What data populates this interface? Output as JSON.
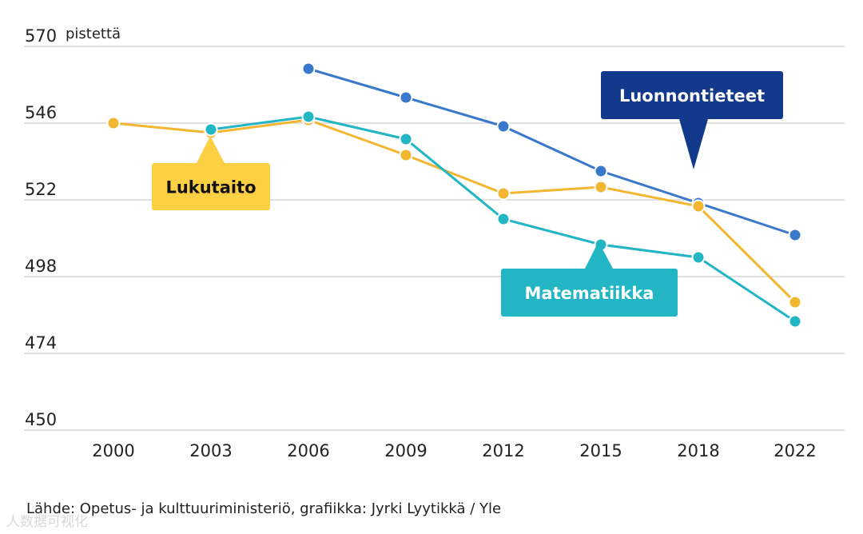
{
  "chart_data": {
    "type": "line",
    "title": "",
    "ylabel": "pistettä",
    "xlabel": "",
    "ylim": [
      450,
      570
    ],
    "yticks": [
      450,
      474,
      498,
      522,
      546,
      570
    ],
    "categories": [
      "2000",
      "2003",
      "2006",
      "2009",
      "2012",
      "2015",
      "2018",
      "2022"
    ],
    "grid": true,
    "series": [
      {
        "name": "Luonnontieteet",
        "color": "#3a78cc",
        "values": [
          null,
          null,
          563,
          554,
          545,
          531,
          521,
          511
        ]
      },
      {
        "name": "Lukutaito",
        "color": "#f2b630",
        "values": [
          546,
          543,
          547,
          536,
          524,
          526,
          520,
          490
        ]
      },
      {
        "name": "Matematiikka",
        "color": "#22b5c3",
        "values": [
          null,
          544,
          548,
          541,
          516,
          508,
          504,
          484
        ]
      }
    ],
    "callouts": [
      {
        "series": "Luonnontieteet",
        "label": "Luonnontieteet",
        "bg": "#13398d",
        "fg": "#ffffff",
        "anchor_year": "2018"
      },
      {
        "series": "Lukutaito",
        "label": "Lukutaito",
        "bg": "#fdd044",
        "fg": "#111111",
        "anchor_year": "2003"
      },
      {
        "series": "Matematiikka",
        "label": "Matematiikka",
        "bg": "#22b5c3",
        "fg": "#ffffff",
        "anchor_year": "2015"
      }
    ]
  },
  "source": "Lähde: Opetus- ja kulttuuriministeriö, grafiikka: Jyrki Lyytikkä  / Yle",
  "watermark": "人数据可视化"
}
